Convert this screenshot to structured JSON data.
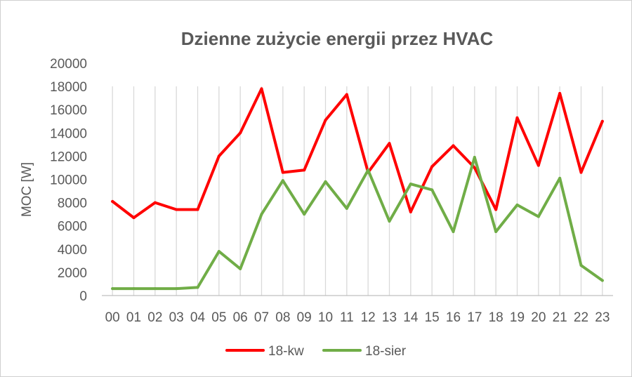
{
  "chart_data": {
    "type": "line",
    "title": "Dzienne zużycie energii przez HVAC",
    "xlabel": "",
    "ylabel": "MOC [W]",
    "ylim": [
      0,
      20000
    ],
    "yticks": [
      0,
      2000,
      4000,
      6000,
      8000,
      10000,
      12000,
      14000,
      16000,
      18000,
      20000
    ],
    "grid": "vertical",
    "legend": "bottom",
    "categories": [
      "00",
      "01",
      "02",
      "03",
      "04",
      "05",
      "06",
      "07",
      "08",
      "09",
      "10",
      "11",
      "12",
      "13",
      "14",
      "15",
      "16",
      "17",
      "18",
      "19",
      "20",
      "21",
      "22",
      "23"
    ],
    "series": [
      {
        "name": "18-kw",
        "color": "#ff0000",
        "values": [
          8100,
          6700,
          8000,
          7400,
          7400,
          12000,
          14000,
          17800,
          10600,
          10800,
          15100,
          17300,
          10600,
          13100,
          7200,
          11100,
          12900,
          11000,
          7400,
          15300,
          11200,
          17400,
          10600,
          15000
        ]
      },
      {
        "name": "18-sier",
        "color": "#70ad47",
        "values": [
          600,
          600,
          600,
          600,
          700,
          3800,
          2300,
          7000,
          9900,
          7000,
          9800,
          7500,
          10800,
          6400,
          9600,
          9100,
          5500,
          11900,
          5500,
          7800,
          6800,
          10100,
          2600,
          1300
        ]
      }
    ]
  }
}
